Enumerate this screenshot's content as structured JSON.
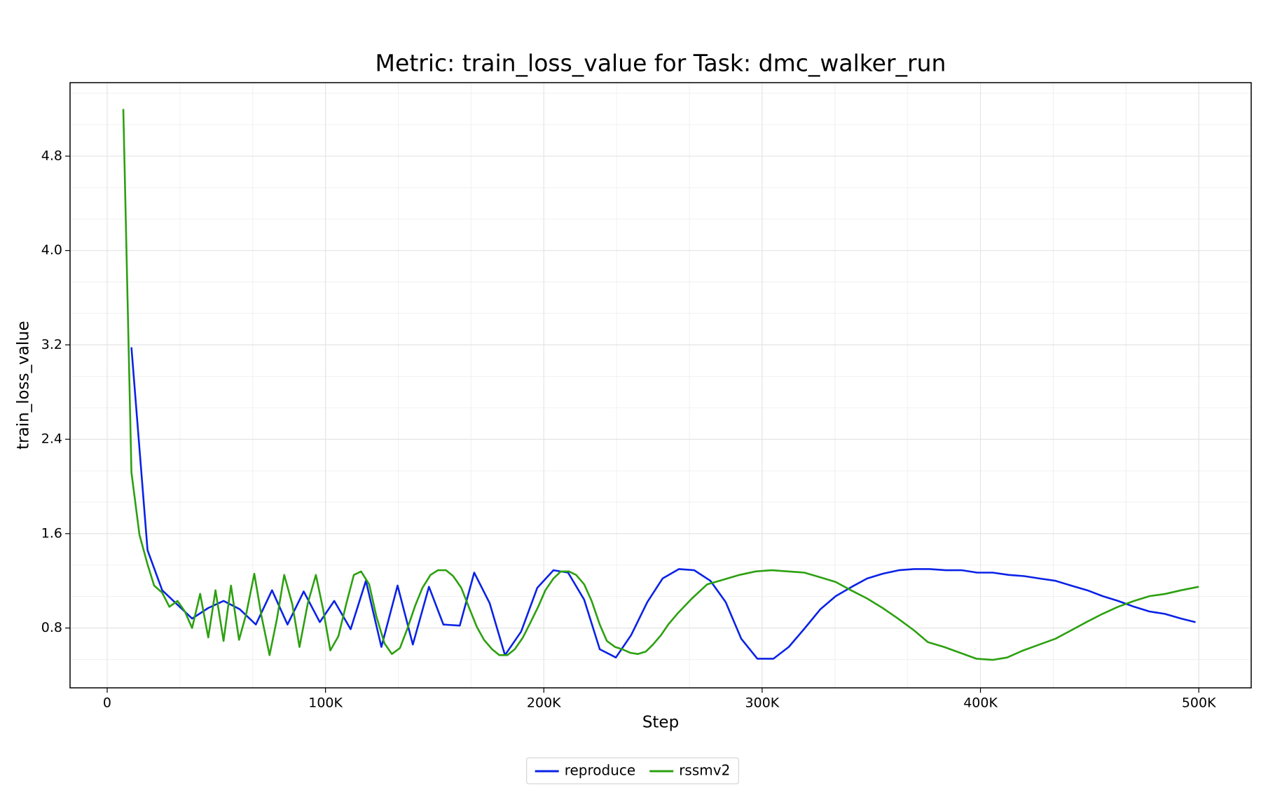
{
  "chart_data": {
    "type": "line",
    "title": "Metric: train_loss_value for Task: dmc_walker_run",
    "xlabel": "Step",
    "ylabel": "train_loss_value",
    "xlim": [
      -17000,
      524000
    ],
    "ylim": [
      0.293,
      5.423
    ],
    "xticks": [
      0,
      {
        "value": 100000,
        "label": "100K"
      },
      {
        "value": 200000,
        "label": "200K"
      },
      {
        "value": 300000,
        "label": "300K"
      },
      {
        "value": 400000,
        "label": "400K"
      },
      {
        "value": 500000,
        "label": "500K"
      }
    ],
    "yticks": [
      0.8,
      1.6,
      2.4,
      3.2,
      4.0,
      4.8
    ],
    "xminorticks": [
      33333,
      66667,
      133333,
      166667,
      233333,
      266667,
      333333,
      366667,
      433333,
      466667
    ],
    "yminorticks": [
      0.533,
      1.067,
      1.333,
      1.867,
      2.133,
      2.667,
      2.933,
      3.467,
      3.733,
      4.267,
      4.533,
      5.067,
      5.333
    ],
    "grid": true,
    "legend": "bottom",
    "series": [
      {
        "name": "reproduce",
        "color": "#0a22e6",
        "x": [
          11100,
          18500,
          25200,
          38900,
          46300,
          53300,
          60700,
          68100,
          75500,
          82600,
          90000,
          97400,
          104000,
          111500,
          118500,
          125600,
          133000,
          140000,
          147400,
          154000,
          161500,
          168100,
          175200,
          182200,
          189600,
          197000,
          204400,
          211100,
          218500,
          225600,
          233000,
          240000,
          247400,
          254400,
          261900,
          268900,
          276300,
          283300,
          290400,
          297800,
          305200,
          312200,
          319600,
          326700,
          333700,
          341100,
          348100,
          355200,
          362600,
          369600,
          376700,
          384100,
          391500,
          398500,
          405600,
          413000,
          420000,
          427000,
          434400,
          441500,
          448900,
          456000,
          463000,
          470400,
          477400,
          484400,
          491900,
          498500
        ],
        "values": [
          3.18,
          1.46,
          1.12,
          0.88,
          0.97,
          1.03,
          0.96,
          0.83,
          1.12,
          0.83,
          1.11,
          0.85,
          1.03,
          0.79,
          1.2,
          0.64,
          1.16,
          0.66,
          1.15,
          0.83,
          0.82,
          1.27,
          1.01,
          0.57,
          0.77,
          1.14,
          1.29,
          1.27,
          1.04,
          0.62,
          0.55,
          0.74,
          1.02,
          1.22,
          1.3,
          1.29,
          1.2,
          1.02,
          0.71,
          0.54,
          0.54,
          0.64,
          0.8,
          0.96,
          1.07,
          1.15,
          1.22,
          1.26,
          1.29,
          1.3,
          1.3,
          1.29,
          1.29,
          1.27,
          1.27,
          1.25,
          1.24,
          1.22,
          1.2,
          1.16,
          1.12,
          1.07,
          1.03,
          0.98,
          0.94,
          0.92,
          0.88,
          0.85
        ]
      },
      {
        "name": "rssmv2",
        "color": "#2ca010",
        "x": [
          7400,
          11100,
          14800,
          18500,
          21500,
          25200,
          28500,
          32200,
          35600,
          38900,
          42600,
          46300,
          49600,
          53300,
          56700,
          60400,
          63700,
          67400,
          70700,
          74400,
          77800,
          81100,
          84800,
          88100,
          91900,
          95600,
          98900,
          102200,
          105900,
          109600,
          113000,
          116300,
          120000,
          123300,
          127000,
          130400,
          134100,
          137400,
          141100,
          144400,
          148100,
          151500,
          155200,
          158500,
          162200,
          165600,
          169300,
          172600,
          176300,
          179600,
          183300,
          186700,
          190400,
          193700,
          197400,
          200700,
          204400,
          207800,
          211500,
          214800,
          218500,
          221900,
          225600,
          228900,
          232600,
          235900,
          239600,
          243000,
          246700,
          250000,
          253700,
          257000,
          261100,
          267800,
          274800,
          282200,
          289600,
          297000,
          304400,
          311900,
          319300,
          326700,
          333700,
          340700,
          348100,
          355200,
          362200,
          369600,
          375900,
          383300,
          390700,
          398100,
          405600,
          412200,
          419600,
          427000,
          434400,
          441500,
          448500,
          455900,
          463000,
          470400,
          477400,
          484800,
          491900,
          500000
        ],
        "values": [
          5.2,
          2.12,
          1.59,
          1.34,
          1.16,
          1.1,
          0.98,
          1.03,
          0.94,
          0.8,
          1.09,
          0.72,
          1.12,
          0.69,
          1.16,
          0.7,
          0.92,
          1.26,
          0.9,
          0.57,
          0.88,
          1.25,
          1.0,
          0.64,
          1.01,
          1.25,
          0.96,
          0.61,
          0.73,
          1.01,
          1.25,
          1.28,
          1.17,
          0.9,
          0.67,
          0.58,
          0.63,
          0.79,
          0.99,
          1.14,
          1.25,
          1.29,
          1.29,
          1.24,
          1.14,
          0.98,
          0.81,
          0.7,
          0.62,
          0.57,
          0.57,
          0.62,
          0.72,
          0.84,
          0.98,
          1.12,
          1.22,
          1.28,
          1.28,
          1.25,
          1.17,
          1.03,
          0.83,
          0.69,
          0.64,
          0.62,
          0.59,
          0.58,
          0.6,
          0.66,
          0.74,
          0.83,
          0.92,
          1.05,
          1.17,
          1.21,
          1.25,
          1.28,
          1.29,
          1.28,
          1.27,
          1.23,
          1.19,
          1.12,
          1.05,
          0.97,
          0.88,
          0.78,
          0.68,
          0.64,
          0.59,
          0.54,
          0.53,
          0.55,
          0.61,
          0.66,
          0.71,
          0.78,
          0.85,
          0.92,
          0.98,
          1.03,
          1.07,
          1.09,
          1.12,
          1.15
        ]
      }
    ]
  }
}
